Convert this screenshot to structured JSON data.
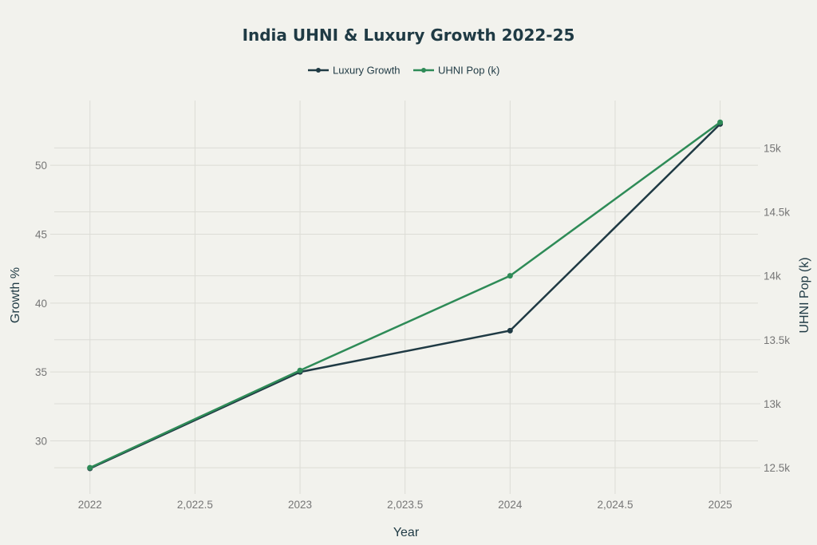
{
  "chart_data": {
    "type": "line",
    "title": "India UHNI & Luxury Growth 2022-25",
    "xlabel": "Year",
    "ylabel": "Growth %",
    "y2label": "UHNI Pop (k)",
    "x": [
      2022,
      2023,
      2024,
      2025
    ],
    "xlim": [
      2021.83,
      2025.18
    ],
    "ylim": [
      26.15,
      54.7
    ],
    "y2lim": [
      12295,
      15370
    ],
    "x_ticks": [
      {
        "value": 2022,
        "label": "2022"
      },
      {
        "value": 2022.5,
        "label": "2,022.5"
      },
      {
        "value": 2023,
        "label": "2023"
      },
      {
        "value": 2023.5,
        "label": "2,023.5"
      },
      {
        "value": 2024,
        "label": "2024"
      },
      {
        "value": 2024.5,
        "label": "2,024.5"
      },
      {
        "value": 2025,
        "label": "2025"
      }
    ],
    "y_ticks": [
      {
        "value": 30,
        "label": "30"
      },
      {
        "value": 35,
        "label": "35"
      },
      {
        "value": 40,
        "label": "40"
      },
      {
        "value": 45,
        "label": "45"
      },
      {
        "value": 50,
        "label": "50"
      }
    ],
    "y2_ticks": [
      {
        "value": 12500,
        "label": "12.5k"
      },
      {
        "value": 13000,
        "label": "13k"
      },
      {
        "value": 13500,
        "label": "13.5k"
      },
      {
        "value": 14000,
        "label": "14k"
      },
      {
        "value": 14500,
        "label": "14.5k"
      },
      {
        "value": 15000,
        "label": "15k"
      }
    ],
    "grid": true,
    "legend_position": "top-center",
    "series": [
      {
        "name": "Luxury Growth",
        "axis": "left",
        "color": "#1f3a44",
        "values": [
          28,
          35,
          38,
          53
        ]
      },
      {
        "name": "UHNI Pop (k)",
        "axis": "right",
        "color": "#2e8b57",
        "values": [
          12500,
          13260,
          14000,
          15200
        ]
      }
    ]
  }
}
